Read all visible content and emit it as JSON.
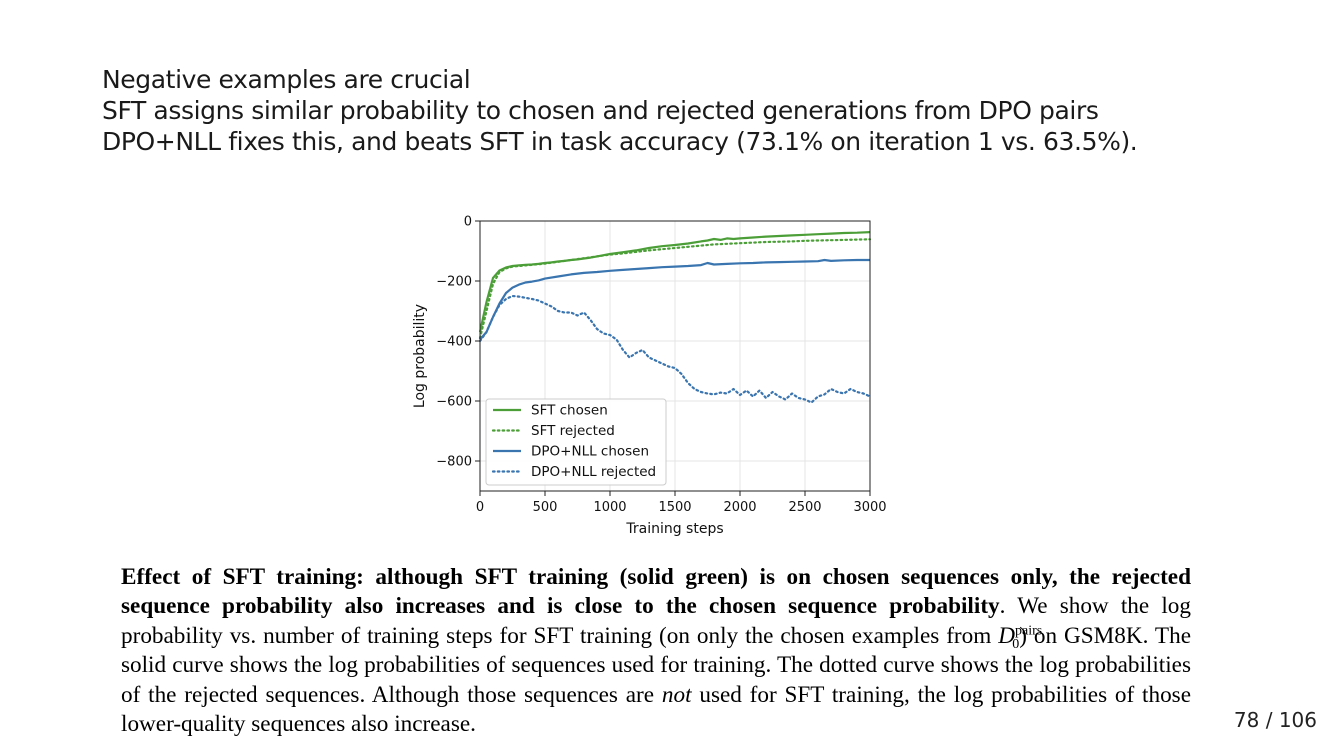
{
  "slide": {
    "title": "Negative examples are crucial",
    "lines": [
      "SFT assigns similar probability to chosen and rejected generations from DPO pairs",
      "DPO+NLL fixes this, and beats SFT in task accuracy (73.1% on iteration 1 vs. 63.5%)."
    ]
  },
  "chart_data": {
    "type": "line",
    "title": "",
    "xlabel": "Training steps",
    "ylabel": "Log probability",
    "xlim": [
      0,
      3000
    ],
    "ylim": [
      -900,
      0
    ],
    "xticks": [
      "0",
      "500",
      "1000",
      "1500",
      "2000",
      "2500",
      "3000"
    ],
    "yticks": [
      "0",
      "−200",
      "−400",
      "−600",
      "−800"
    ],
    "grid": true,
    "legend_position": "lower-left",
    "series": [
      {
        "name": "SFT chosen",
        "style": "solid",
        "color": "#4c9f38",
        "x": [
          0,
          50,
          100,
          150,
          200,
          250,
          300,
          350,
          400,
          450,
          500,
          550,
          600,
          650,
          700,
          750,
          800,
          850,
          900,
          950,
          1000,
          1100,
          1200,
          1300,
          1400,
          1500,
          1600,
          1700,
          1750,
          1800,
          1850,
          1900,
          1950,
          2000,
          2100,
          2200,
          2300,
          2400,
          2500,
          2600,
          2700,
          2800,
          2900,
          3000
        ],
        "y": [
          -370,
          -270,
          -190,
          -165,
          -155,
          -150,
          -148,
          -146,
          -145,
          -143,
          -140,
          -138,
          -135,
          -133,
          -130,
          -128,
          -125,
          -122,
          -118,
          -114,
          -110,
          -104,
          -98,
          -90,
          -84,
          -80,
          -75,
          -68,
          -65,
          -60,
          -63,
          -58,
          -60,
          -58,
          -55,
          -52,
          -50,
          -48,
          -46,
          -44,
          -42,
          -40,
          -39,
          -37
        ]
      },
      {
        "name": "SFT rejected",
        "style": "dotted",
        "color": "#4c9f38",
        "x": [
          0,
          50,
          100,
          150,
          200,
          250,
          300,
          350,
          400,
          450,
          500,
          600,
          700,
          800,
          900,
          1000,
          1100,
          1200,
          1300,
          1400,
          1500,
          1600,
          1700,
          1800,
          1900,
          2000,
          2100,
          2200,
          2300,
          2400,
          2500,
          2600,
          2700,
          2800,
          2900,
          3000
        ],
        "y": [
          -390,
          -300,
          -210,
          -170,
          -158,
          -152,
          -150,
          -148,
          -146,
          -144,
          -142,
          -136,
          -130,
          -124,
          -118,
          -112,
          -108,
          -103,
          -98,
          -94,
          -90,
          -86,
          -82,
          -78,
          -76,
          -74,
          -72,
          -70,
          -69,
          -68,
          -66,
          -65,
          -64,
          -63,
          -62,
          -61
        ]
      },
      {
        "name": "DPO+NLL chosen",
        "style": "solid",
        "color": "#3a75b0",
        "x": [
          0,
          50,
          100,
          150,
          200,
          250,
          300,
          350,
          400,
          450,
          500,
          600,
          700,
          800,
          900,
          1000,
          1100,
          1200,
          1300,
          1400,
          1500,
          1600,
          1700,
          1750,
          1800,
          1900,
          2000,
          2100,
          2200,
          2300,
          2400,
          2500,
          2600,
          2650,
          2700,
          2800,
          2900,
          3000
        ],
        "y": [
          -395,
          -370,
          -320,
          -275,
          -240,
          -222,
          -212,
          -205,
          -202,
          -198,
          -192,
          -185,
          -178,
          -173,
          -170,
          -166,
          -163,
          -160,
          -157,
          -154,
          -152,
          -150,
          -147,
          -140,
          -145,
          -143,
          -141,
          -140,
          -138,
          -137,
          -136,
          -135,
          -134,
          -130,
          -133,
          -131,
          -130,
          -130
        ]
      },
      {
        "name": "DPO+NLL rejected",
        "style": "dotted",
        "color": "#3a75b0",
        "x": [
          0,
          50,
          100,
          150,
          200,
          250,
          300,
          350,
          400,
          450,
          500,
          550,
          600,
          650,
          700,
          750,
          800,
          850,
          900,
          950,
          1000,
          1050,
          1100,
          1150,
          1200,
          1250,
          1300,
          1350,
          1400,
          1450,
          1500,
          1550,
          1600,
          1650,
          1700,
          1750,
          1800,
          1850,
          1900,
          1950,
          2000,
          2050,
          2100,
          2150,
          2200,
          2250,
          2300,
          2350,
          2400,
          2450,
          2500,
          2550,
          2600,
          2650,
          2700,
          2750,
          2800,
          2850,
          2900,
          2950,
          3000
        ],
        "y": [
          -400,
          -370,
          -320,
          -280,
          -260,
          -250,
          -252,
          -256,
          -260,
          -265,
          -275,
          -285,
          -300,
          -305,
          -305,
          -315,
          -305,
          -330,
          -360,
          -375,
          -380,
          -395,
          -430,
          -455,
          -440,
          -430,
          -455,
          -465,
          -475,
          -485,
          -490,
          -510,
          -540,
          -560,
          -570,
          -575,
          -578,
          -572,
          -575,
          -560,
          -580,
          -565,
          -585,
          -565,
          -590,
          -570,
          -585,
          -595,
          -575,
          -590,
          -595,
          -605,
          -585,
          -578,
          -560,
          -570,
          -575,
          -560,
          -570,
          -575,
          -585
        ]
      }
    ]
  },
  "caption": {
    "bold": "Effect of SFT training: although SFT training (solid green) is on chosen sequences only, the rejected sequence probability also increases and is close to the chosen sequence probability",
    "period": ".",
    "text1": " We show the log probability vs. number of training steps for SFT training (on only the chosen examples from ",
    "symbol": "D",
    "superscript": "pairs",
    "subscript": "0",
    "text2": ") on GSM8K. The solid curve shows the log probabilities of sequences used for training. The dotted curve shows the log probabilities of the rejected sequences. Although those sequences are ",
    "italic": "not",
    "text3": " used for SFT training, the log probabilities of those lower-quality sequences also increase."
  },
  "page": {
    "number": "78 / 106"
  }
}
